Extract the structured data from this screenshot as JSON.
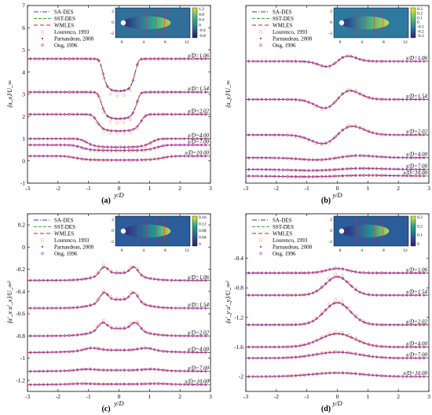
{
  "figure": {
    "labels": [
      "(a)",
      "(b)",
      "(c)",
      "(d)"
    ]
  },
  "legend_entries": [
    {
      "name": "SA-DES",
      "color": "#3a3aa0",
      "dash": "6,2,1,2",
      "marker": ""
    },
    {
      "name": "SST-DES",
      "color": "#3aa83a",
      "dash": "4,2",
      "marker": ""
    },
    {
      "name": "WMLES",
      "color": "#c02020",
      "dash": "5,3",
      "marker": ""
    },
    {
      "name": "Lourenco, 1993",
      "color": "#e8b080",
      "dash": "",
      "marker": "circle-open"
    },
    {
      "name": "Parnaudeau, 2008",
      "color": "#cc1a6a",
      "dash": "",
      "marker": "dot"
    },
    {
      "name": "Ong, 1996",
      "color": "#a040c0",
      "dash": "",
      "marker": "diamond-open"
    }
  ],
  "colorbars": [
    {
      "ticks": [
        "1.2",
        "0.8",
        "0.4",
        "0",
        "-0.4",
        "-0.8"
      ],
      "inset_xticks": [
        "0",
        "4",
        "8",
        "12"
      ],
      "inset_yticks": [
        "2",
        "0",
        "-2"
      ]
    },
    {
      "ticks": [
        "0.3",
        "0.2",
        "0.1",
        "0",
        "-0.1",
        "-0.2",
        "-0.3"
      ],
      "inset_xticks": [
        "0",
        "4",
        "8",
        "12"
      ],
      "inset_yticks": [
        "2",
        "0",
        "-2"
      ]
    },
    {
      "ticks": [
        "0.16",
        "0.12",
        "0.08",
        "0.04",
        "0"
      ],
      "inset_xticks": [
        "0",
        "4",
        "8",
        "12"
      ],
      "inset_yticks": [
        "2",
        "0",
        "-2"
      ]
    },
    {
      "ticks": [
        "0.3",
        "0.2",
        "0.1",
        "0"
      ],
      "inset_xticks": [
        "0",
        "4",
        "8",
        "12"
      ],
      "inset_yticks": [
        "2",
        "0",
        "-2"
      ]
    }
  ],
  "chart_data": [
    {
      "type": "line",
      "panel": "(a)",
      "xlabel": "y/D",
      "ylabel": "⟨u_x⟩/U_∞",
      "xlim": [
        -3,
        3
      ],
      "ylim": [
        -1,
        7
      ],
      "xticks": [
        "-3",
        "-2",
        "-1",
        "0",
        "1",
        "2",
        "3"
      ],
      "yticks": [
        "-1",
        "0",
        "1",
        "2",
        "3",
        "4",
        "5",
        "6",
        "7"
      ],
      "stations": [
        {
          "label": "x/D=1.06",
          "offset": 4.6,
          "depth": 1.45,
          "width": 0.55
        },
        {
          "label": "x/D=1.54",
          "offset": 3.1,
          "depth": 1.2,
          "width": 0.6
        },
        {
          "label": "x/D=2.02",
          "offset": 2.1,
          "depth": 0.75,
          "width": 0.75
        },
        {
          "label": "x/D=4.00",
          "offset": 1.0,
          "depth": 0.38,
          "width": 1.1
        },
        {
          "label": "x/D=7.00",
          "offset": 0.72,
          "depth": 0.25,
          "width": 1.3
        },
        {
          "label": "x/D=10.00",
          "offset": 0.22,
          "depth": 0.18,
          "width": 1.5
        }
      ]
    },
    {
      "type": "line",
      "panel": "(b)",
      "xlabel": "y/D",
      "ylabel": "⟨u_y⟩/U_∞",
      "xlim": [
        -3,
        3
      ],
      "ylim": [
        -3,
        0.5
      ],
      "xticks": [
        "-3",
        "-2",
        "-1",
        "0",
        "1",
        "2",
        "3"
      ],
      "yticks": [],
      "stations": [
        {
          "label": "x/D=1.06",
          "offset": -0.6,
          "depth": 0.15,
          "width": 0.5
        },
        {
          "label": "x/D=1.54",
          "offset": -1.35,
          "depth": 0.25,
          "width": 0.6
        },
        {
          "label": "x/D=2.02",
          "offset": -2.05,
          "depth": 0.25,
          "width": 0.7
        },
        {
          "label": "x/D=4.00",
          "offset": -2.5,
          "depth": 0.06,
          "width": 1.0
        },
        {
          "label": "x/D=7.00",
          "offset": -2.73,
          "depth": 0.03,
          "width": 1.2
        },
        {
          "label": "x/D=10.00",
          "offset": -2.86,
          "depth": 0.02,
          "width": 1.4
        }
      ]
    },
    {
      "type": "line",
      "panel": "(c)",
      "xlabel": "y/D",
      "ylabel": "⟨u'_x u'_x⟩/U_∞²",
      "xlim": [
        -3,
        3
      ],
      "ylim": [
        -1.3,
        0.3
      ],
      "xticks": [
        "-3",
        "-2",
        "-1",
        "0",
        "1",
        "2",
        "3"
      ],
      "yticks": [
        "0.2",
        "0",
        "-0.2",
        "-0.4",
        "-0.6",
        "-0.8",
        "-1",
        "-1.2"
      ],
      "stations": [
        {
          "label": "x/D=1.06",
          "offset": -0.3,
          "depth": 0.12,
          "width": 0.55
        },
        {
          "label": "x/D=1.54",
          "offset": -0.55,
          "depth": 0.14,
          "width": 0.55
        },
        {
          "label": "x/D=2.02",
          "offset": -0.8,
          "depth": 0.12,
          "width": 0.6
        },
        {
          "label": "x/D=4.00",
          "offset": -0.95,
          "depth": 0.04,
          "width": 1.0
        },
        {
          "label": "x/D=7.00",
          "offset": -1.12,
          "depth": 0.02,
          "width": 1.2
        },
        {
          "label": "x/D=10.00",
          "offset": -1.24,
          "depth": 0.01,
          "width": 1.4
        }
      ]
    },
    {
      "type": "line",
      "panel": "(d)",
      "xlabel": "y/D",
      "ylabel": "⟨u'_y u'_y⟩/U_∞²",
      "xlim": [
        -3,
        3
      ],
      "ylim": [
        -2.2,
        0.2
      ],
      "xticks": [
        "-3",
        "-2",
        "-1",
        "0",
        "1",
        "2",
        "3"
      ],
      "yticks": [
        "-0.4",
        "-0.8",
        "-1.2",
        "-1.6",
        "-2"
      ],
      "stations": [
        {
          "label": "x/D=1.06",
          "offset": -0.6,
          "depth": 0.06,
          "width": 0.5
        },
        {
          "label": "x/D=1.54",
          "offset": -0.9,
          "depth": 0.25,
          "width": 0.55
        },
        {
          "label": "x/D=2.02",
          "offset": -1.3,
          "depth": 0.3,
          "width": 0.6
        },
        {
          "label": "x/D=4.00",
          "offset": -1.6,
          "depth": 0.18,
          "width": 0.8
        },
        {
          "label": "x/D=7.00",
          "offset": -1.75,
          "depth": 0.08,
          "width": 1.0
        },
        {
          "label": "x/D=10.00",
          "offset": -2.0,
          "depth": 0.05,
          "width": 1.2
        }
      ]
    }
  ]
}
